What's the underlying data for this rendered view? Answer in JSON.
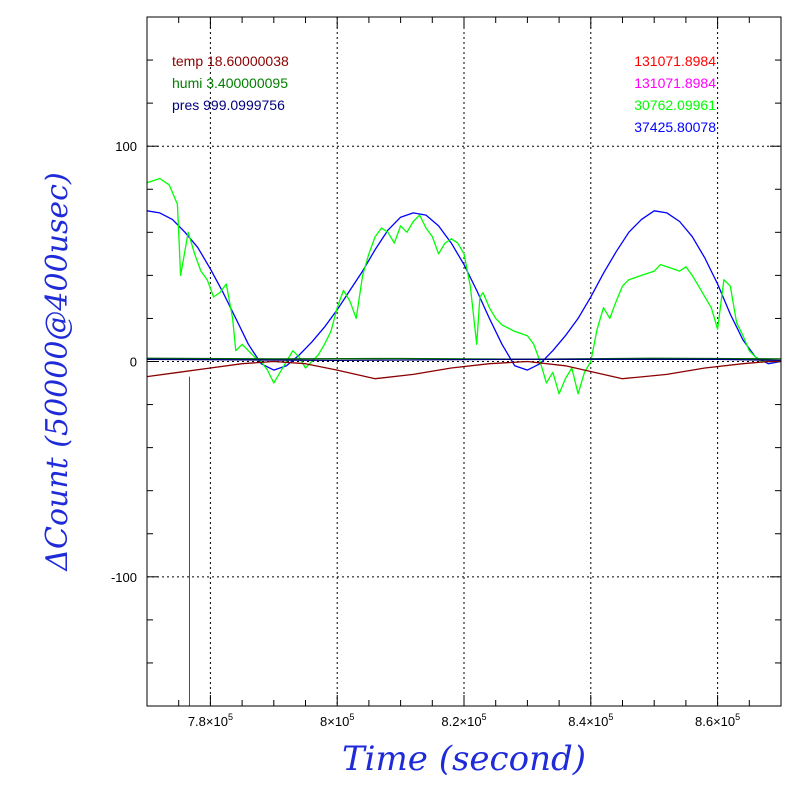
{
  "chart_data": {
    "type": "line",
    "xlabel": "Time (second)",
    "ylabel": "ΔCount (50000@400usec)",
    "xlim": [
      770000,
      870000
    ],
    "ylim": [
      -160,
      160
    ],
    "x_ticks": [
      {
        "value": 780000,
        "mantissa": "7.8",
        "exp": "5"
      },
      {
        "value": 800000,
        "mantissa": "8",
        "exp": "5"
      },
      {
        "value": 820000,
        "mantissa": "8.2",
        "exp": "5"
      },
      {
        "value": 840000,
        "mantissa": "8.4",
        "exp": "5"
      },
      {
        "value": 860000,
        "mantissa": "8.6",
        "exp": "5"
      }
    ],
    "y_ticks": [
      {
        "value": 100,
        "label": "100"
      },
      {
        "value": 0,
        "label": "0"
      },
      {
        "value": -100,
        "label": "-100"
      }
    ],
    "grid": true,
    "legend_left": [
      {
        "name": "temp",
        "value": "18.60000038",
        "color": "#8b0000"
      },
      {
        "name": "humi",
        "value": "3.400000095",
        "color": "#008000"
      },
      {
        "name": "pres",
        "value": "999.0999756",
        "color": "#000080"
      }
    ],
    "legend_right": [
      {
        "value": "131071.8984",
        "color": "#ff0000"
      },
      {
        "value": "131071.8984",
        "color": "#ff00ff"
      },
      {
        "value": "30762.09961",
        "color": "#00ff00"
      },
      {
        "value": "37425.80078",
        "color": "#0000ff"
      }
    ],
    "series": [
      {
        "color": "#0000ff",
        "x": [
          770000,
          772000,
          774000,
          776000,
          778000,
          780000,
          782000,
          784000,
          786000,
          788000,
          790000,
          792000,
          794000,
          796000,
          798000,
          800000,
          802000,
          804000,
          806000,
          808000,
          810000,
          812000,
          814000,
          816000,
          818000,
          820000,
          822000,
          824000,
          826000,
          828000,
          830000,
          832000,
          834000,
          836000,
          838000,
          840000,
          842000,
          844000,
          846000,
          848000,
          850000,
          852000,
          854000,
          856000,
          858000,
          860000,
          862000,
          864000,
          866000,
          868000,
          870000
        ],
        "y": [
          70,
          69,
          66,
          60,
          53,
          43,
          32,
          20,
          8,
          -1,
          -4,
          -2,
          3,
          9,
          16,
          24,
          33,
          42,
          52,
          61,
          67,
          69,
          68,
          63,
          55,
          45,
          33,
          20,
          8,
          -2,
          -4,
          -1,
          5,
          12,
          20,
          30,
          41,
          51,
          60,
          66,
          70,
          69,
          65,
          58,
          48,
          36,
          22,
          10,
          2,
          -1,
          0
        ]
      },
      {
        "color": "#00ff00",
        "x": [
          770000,
          772000,
          773500,
          774800,
          775000,
          775300,
          776500,
          777500,
          778500,
          779500,
          780500,
          781500,
          782500,
          783500,
          784000,
          785000,
          786000,
          787000,
          788000,
          789000,
          790000,
          791000,
          792000,
          793000,
          794000,
          795000,
          796000,
          797000,
          798000,
          799000,
          800000,
          801000,
          802000,
          803000,
          804000,
          805000,
          806000,
          807000,
          808000,
          809000,
          810000,
          811000,
          812000,
          813000,
          814000,
          815000,
          816000,
          817000,
          818000,
          819000,
          820000,
          821000,
          822000,
          822500,
          823000,
          824000,
          825000,
          826000,
          828000,
          830000,
          831000,
          832000,
          833000,
          834000,
          835000,
          836000,
          837000,
          838000,
          839000,
          840000,
          841000,
          842000,
          843000,
          844000,
          845000,
          846000,
          848000,
          850000,
          851000,
          852000,
          853000,
          854000,
          855000,
          856000,
          857000,
          858000,
          859000,
          860000,
          861000,
          862000,
          863000,
          864000,
          865000,
          866000,
          867000,
          868000,
          870000
        ],
        "y": [
          83,
          85,
          82,
          73,
          60,
          40,
          60,
          50,
          42,
          38,
          30,
          32,
          36,
          20,
          5,
          8,
          5,
          2,
          0,
          -4,
          -10,
          -5,
          0,
          5,
          2,
          -3,
          0,
          3,
          8,
          14,
          25,
          33,
          28,
          20,
          40,
          50,
          58,
          62,
          60,
          55,
          63,
          60,
          65,
          68,
          62,
          58,
          50,
          55,
          57,
          55,
          50,
          35,
          8,
          30,
          32,
          25,
          20,
          17,
          14,
          12,
          8,
          0,
          -10,
          -5,
          -15,
          -8,
          -3,
          -15,
          -5,
          0,
          15,
          25,
          20,
          28,
          35,
          38,
          40,
          42,
          45,
          44,
          43,
          42,
          44,
          40,
          35,
          30,
          25,
          15,
          38,
          35,
          18,
          12,
          5,
          2,
          0,
          0,
          0
        ]
      },
      {
        "color": "#8b0000",
        "x": [
          770000,
          775000,
          780000,
          785000,
          790000,
          795000,
          800000,
          806000,
          812000,
          818000,
          824000,
          830000,
          836000,
          845000,
          852000,
          858000,
          864000,
          868000,
          870000
        ],
        "y": [
          -7,
          -5,
          -3,
          -1,
          0,
          -1,
          -4,
          -8,
          -6,
          -3,
          -1,
          0,
          -2,
          -8,
          -6,
          -3,
          -1,
          0,
          0
        ]
      },
      {
        "color": "#006400",
        "x": [
          770000,
          790000,
          810000,
          830000,
          850000,
          870000
        ],
        "y": [
          1.5,
          1.2,
          1.4,
          1.0,
          1.5,
          1.2
        ]
      },
      {
        "color": "#000080",
        "x": [
          770000,
          800000,
          830000,
          860000,
          870000
        ],
        "y": [
          1,
          0.5,
          1,
          1,
          0.5
        ]
      }
    ],
    "red_marker_x": 776700
  }
}
